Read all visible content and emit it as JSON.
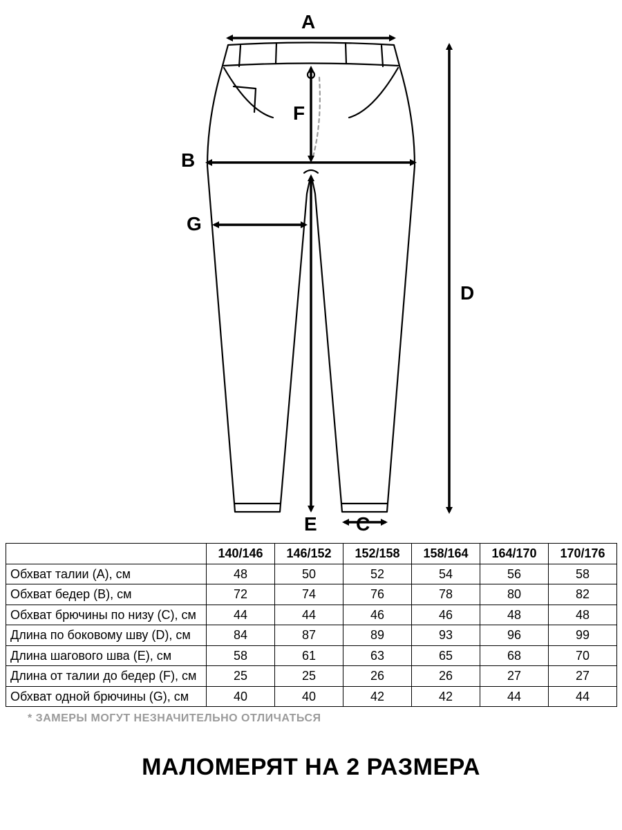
{
  "diagram": {
    "labels": {
      "A": "A",
      "B": "B",
      "C": "C",
      "D": "D",
      "E": "E",
      "F": "F",
      "G": "G"
    },
    "stroke_color": "#000000",
    "dash_color": "#9a9a9a",
    "fill_color": "#ffffff",
    "stroke_width_main": 2.2,
    "stroke_width_arrow": 3.5
  },
  "table": {
    "corner": "",
    "columns": [
      "140/146",
      "146/152",
      "152/158",
      "158/164",
      "164/170",
      "170/176"
    ],
    "rows": [
      {
        "label": "Обхват талии (A), см",
        "values": [
          48,
          50,
          52,
          54,
          56,
          58
        ]
      },
      {
        "label": "Обхват бедер (B), см",
        "values": [
          72,
          74,
          76,
          78,
          80,
          82
        ]
      },
      {
        "label": "Обхват брючины по низу (C), см",
        "values": [
          44,
          44,
          46,
          46,
          48,
          48
        ]
      },
      {
        "label": "Длина по боковому шву (D), см",
        "values": [
          84,
          87,
          89,
          93,
          96,
          99
        ]
      },
      {
        "label": "Длина шагового шва (E), см",
        "values": [
          58,
          61,
          63,
          65,
          68,
          70
        ]
      },
      {
        "label": "Длина от талии до бедер (F), см",
        "values": [
          25,
          25,
          26,
          26,
          27,
          27
        ]
      },
      {
        "label": "Обхват одной брючины (G), см",
        "values": [
          40,
          40,
          42,
          42,
          44,
          44
        ]
      }
    ],
    "border_color": "#000000",
    "cell_fontsize": 18
  },
  "footnote": "* ЗАМЕРЫ МОГУТ НЕЗНАЧИТЕЛЬНО ОТЛИЧАТЬСЯ",
  "headline": "МАЛОМЕРЯТ НА 2 РАЗМЕРА"
}
